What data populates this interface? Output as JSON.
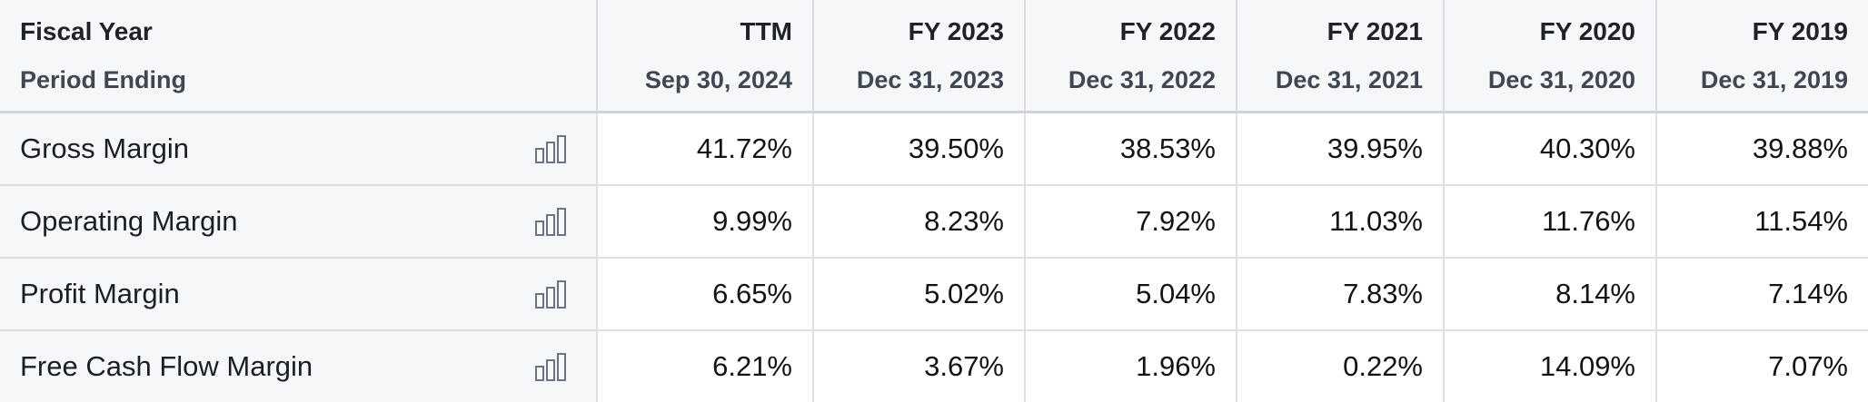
{
  "header": {
    "row_label_1": "Fiscal Year",
    "row_label_2": "Period Ending",
    "columns": [
      {
        "period": "TTM",
        "date": "Sep 30, 2024"
      },
      {
        "period": "FY 2023",
        "date": "Dec 31, 2023"
      },
      {
        "period": "FY 2022",
        "date": "Dec 31, 2022"
      },
      {
        "period": "FY 2021",
        "date": "Dec 31, 2021"
      },
      {
        "period": "FY 2020",
        "date": "Dec 31, 2020"
      },
      {
        "period": "FY 2019",
        "date": "Dec 31, 2019"
      }
    ]
  },
  "rows": [
    {
      "label": "Gross Margin",
      "icon": "bar-chart-icon",
      "values": [
        "41.72%",
        "39.50%",
        "38.53%",
        "39.95%",
        "40.30%",
        "39.88%"
      ]
    },
    {
      "label": "Operating Margin",
      "icon": "bar-chart-icon",
      "values": [
        "9.99%",
        "8.23%",
        "7.92%",
        "11.03%",
        "11.76%",
        "11.54%"
      ]
    },
    {
      "label": "Profit Margin",
      "icon": "bar-chart-icon",
      "values": [
        "6.65%",
        "5.02%",
        "5.04%",
        "7.83%",
        "8.14%",
        "7.14%"
      ]
    },
    {
      "label": "Free Cash Flow Margin",
      "icon": "bar-chart-icon",
      "values": [
        "6.21%",
        "3.67%",
        "1.96%",
        "0.22%",
        "14.09%",
        "7.07%"
      ]
    }
  ],
  "colors": {
    "header_bg": "#f6f7f9",
    "border": "#dcdfe4",
    "icon": "#6b7280"
  }
}
